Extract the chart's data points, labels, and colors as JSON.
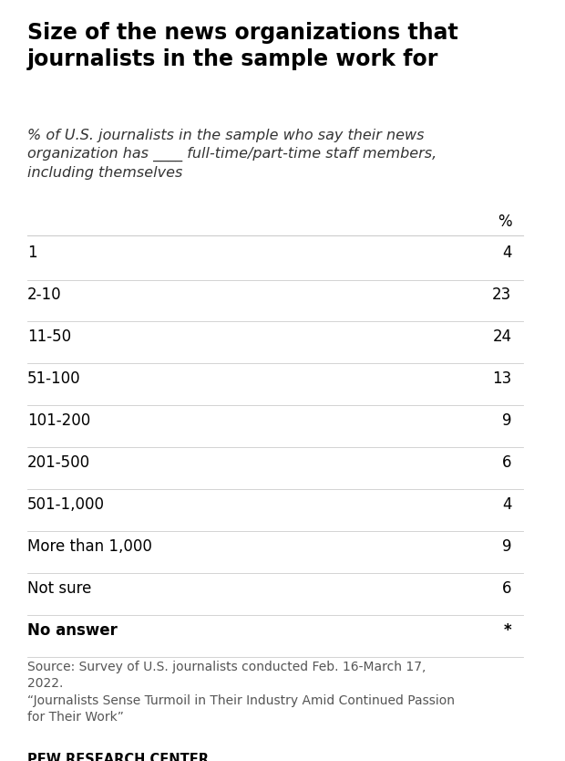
{
  "title": "Size of the news organizations that\njournalists in the sample work for",
  "subtitle": "% of U.S. journalists in the sample who say their news\norganization has ____ full-time/part-time staff members,\nincluding themselves",
  "col_header": "%",
  "rows": [
    {
      "label": "1",
      "value": "4"
    },
    {
      "label": "2-10",
      "value": "23"
    },
    {
      "label": "11-50",
      "value": "24"
    },
    {
      "label": "51-100",
      "value": "13"
    },
    {
      "label": "101-200",
      "value": "9"
    },
    {
      "label": "201-500",
      "value": "6"
    },
    {
      "label": "501-1,000",
      "value": "4"
    },
    {
      "label": "More than 1,000",
      "value": "9"
    },
    {
      "label": "Not sure",
      "value": "6"
    },
    {
      "label": "No answer",
      "value": "*"
    }
  ],
  "source_text": "Source: Survey of U.S. journalists conducted Feb. 16-March 17,\n2022.\n“Journalists Sense Turmoil in Their Industry Amid Continued Passion\nfor Their Work”",
  "footer": "PEW RESEARCH CENTER",
  "background_color": "#ffffff",
  "title_color": "#000000",
  "subtitle_color": "#333333",
  "row_label_color": "#000000",
  "row_value_color": "#000000",
  "header_color": "#000000",
  "source_color": "#555555",
  "footer_color": "#000000",
  "separator_color": "#cccccc",
  "bold_rows": [
    "No answer"
  ],
  "title_fontsize": 17,
  "subtitle_fontsize": 11.5,
  "header_fontsize": 12,
  "row_fontsize": 12,
  "source_fontsize": 10,
  "footer_fontsize": 10.5
}
